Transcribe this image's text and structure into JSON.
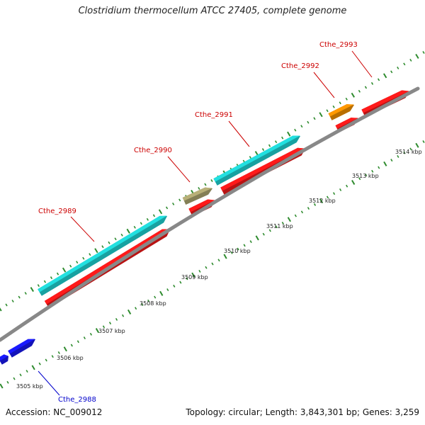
{
  "title": "Clostridium thermocellum ATCC 27405, complete genome",
  "footer": {
    "accession": "Accession: NC_009012",
    "summary": "Topology: circular; Length: 3,843,301 bp; Genes: 3,259"
  },
  "colors": {
    "backbone": "#888888",
    "tick": "#2e8b2e",
    "cds_red": "#ff1a1a",
    "cds_cyan": "#22e0e0",
    "cds_olive": "#b8b078",
    "cds_orange": "#ff9900",
    "cds_blue": "#1a1aff",
    "label_red": "#cc0000",
    "label_blue": "#0000cc"
  },
  "scale_labels": [
    "3505 kbp",
    "3506 kbp",
    "3507 kbp",
    "3508 kbp",
    "3509 kbp",
    "3510 kbp",
    "3511 kbp",
    "3512 kbp",
    "3513 kbp",
    "3514 kbp"
  ],
  "genes": [
    {
      "name": "Cthe_2988",
      "color": "blue"
    },
    {
      "name": "Cthe_2989",
      "color": "red"
    },
    {
      "name": "Cthe_2990",
      "color": "red"
    },
    {
      "name": "Cthe_2991",
      "color": "red"
    },
    {
      "name": "Cthe_2992",
      "color": "red"
    },
    {
      "name": "Cthe_2993",
      "color": "red"
    }
  ]
}
